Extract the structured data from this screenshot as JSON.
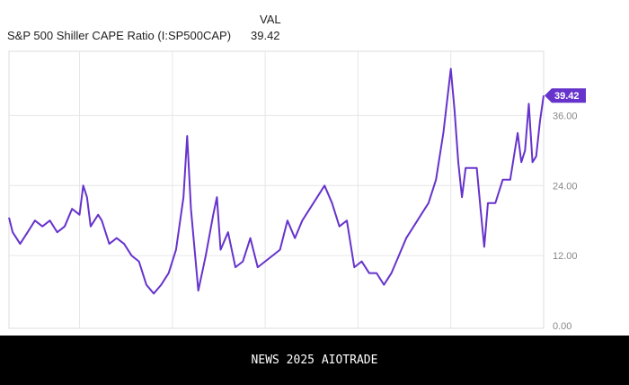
{
  "header": {
    "series_name": "S&P 500 Shiller CAPE Ratio (I:SP500CAP)",
    "column_label": "VAL",
    "current_value": "39.42"
  },
  "footer": {
    "text": "NEWS 2025 AIOTRADE"
  },
  "colors": {
    "line": "#6633cc",
    "grid": "#e6e6e6",
    "axis_text": "#888888"
  },
  "chart_data": {
    "type": "line",
    "title": "S&P 500 Shiller CAPE Ratio (I:SP500CAP)",
    "xlabel": "",
    "ylabel": "",
    "xlim": [
      1881,
      2025
    ],
    "ylim": [
      0,
      47
    ],
    "yticks": [
      0,
      12,
      24,
      36
    ],
    "ytick_labels": [
      "0.00",
      "12.00",
      "24.00",
      "36.00"
    ],
    "xgrid": [
      1900,
      1925,
      1950,
      1975,
      2000
    ],
    "grid": true,
    "last_value_label": "39.42",
    "series": [
      {
        "name": "S&P 500 Shiller CAPE Ratio",
        "x": [
          1881,
          1882,
          1884,
          1886,
          1888,
          1890,
          1892,
          1894,
          1896,
          1898,
          1900,
          1901,
          1902,
          1903,
          1905,
          1906,
          1908,
          1910,
          1912,
          1914,
          1916,
          1918,
          1920,
          1922,
          1924,
          1926,
          1928,
          1929,
          1930,
          1932,
          1934,
          1936,
          1937,
          1938,
          1940,
          1942,
          1944,
          1946,
          1948,
          1950,
          1952,
          1954,
          1956,
          1958,
          1960,
          1962,
          1964,
          1966,
          1968,
          1970,
          1972,
          1974,
          1976,
          1978,
          1980,
          1982,
          1984,
          1986,
          1988,
          1990,
          1992,
          1994,
          1996,
          1998,
          2000,
          2001,
          2002,
          2003,
          2004,
          2006,
          2007,
          2008,
          2009,
          2010,
          2012,
          2014,
          2016,
          2018,
          2019,
          2020,
          2021,
          2022,
          2023,
          2024,
          2025
        ],
        "values": [
          18.5,
          16,
          14,
          16,
          18,
          17,
          18,
          16,
          17,
          20,
          19,
          24,
          22,
          17,
          19,
          18,
          14,
          15,
          14,
          12,
          11,
          7,
          5.5,
          7,
          9,
          13,
          22,
          32.5,
          20,
          6,
          12,
          19,
          22,
          13,
          16,
          10,
          11,
          15,
          10,
          11,
          12,
          13,
          18,
          15,
          18,
          20,
          22,
          24,
          21,
          17,
          18,
          10,
          11,
          9,
          9,
          7,
          9,
          12,
          15,
          17,
          19,
          21,
          25,
          33,
          44,
          37,
          28,
          22,
          27,
          27,
          27,
          20,
          13.5,
          21,
          21,
          25,
          25,
          33,
          28,
          30,
          38,
          28,
          29,
          35,
          39.42
        ]
      }
    ]
  }
}
